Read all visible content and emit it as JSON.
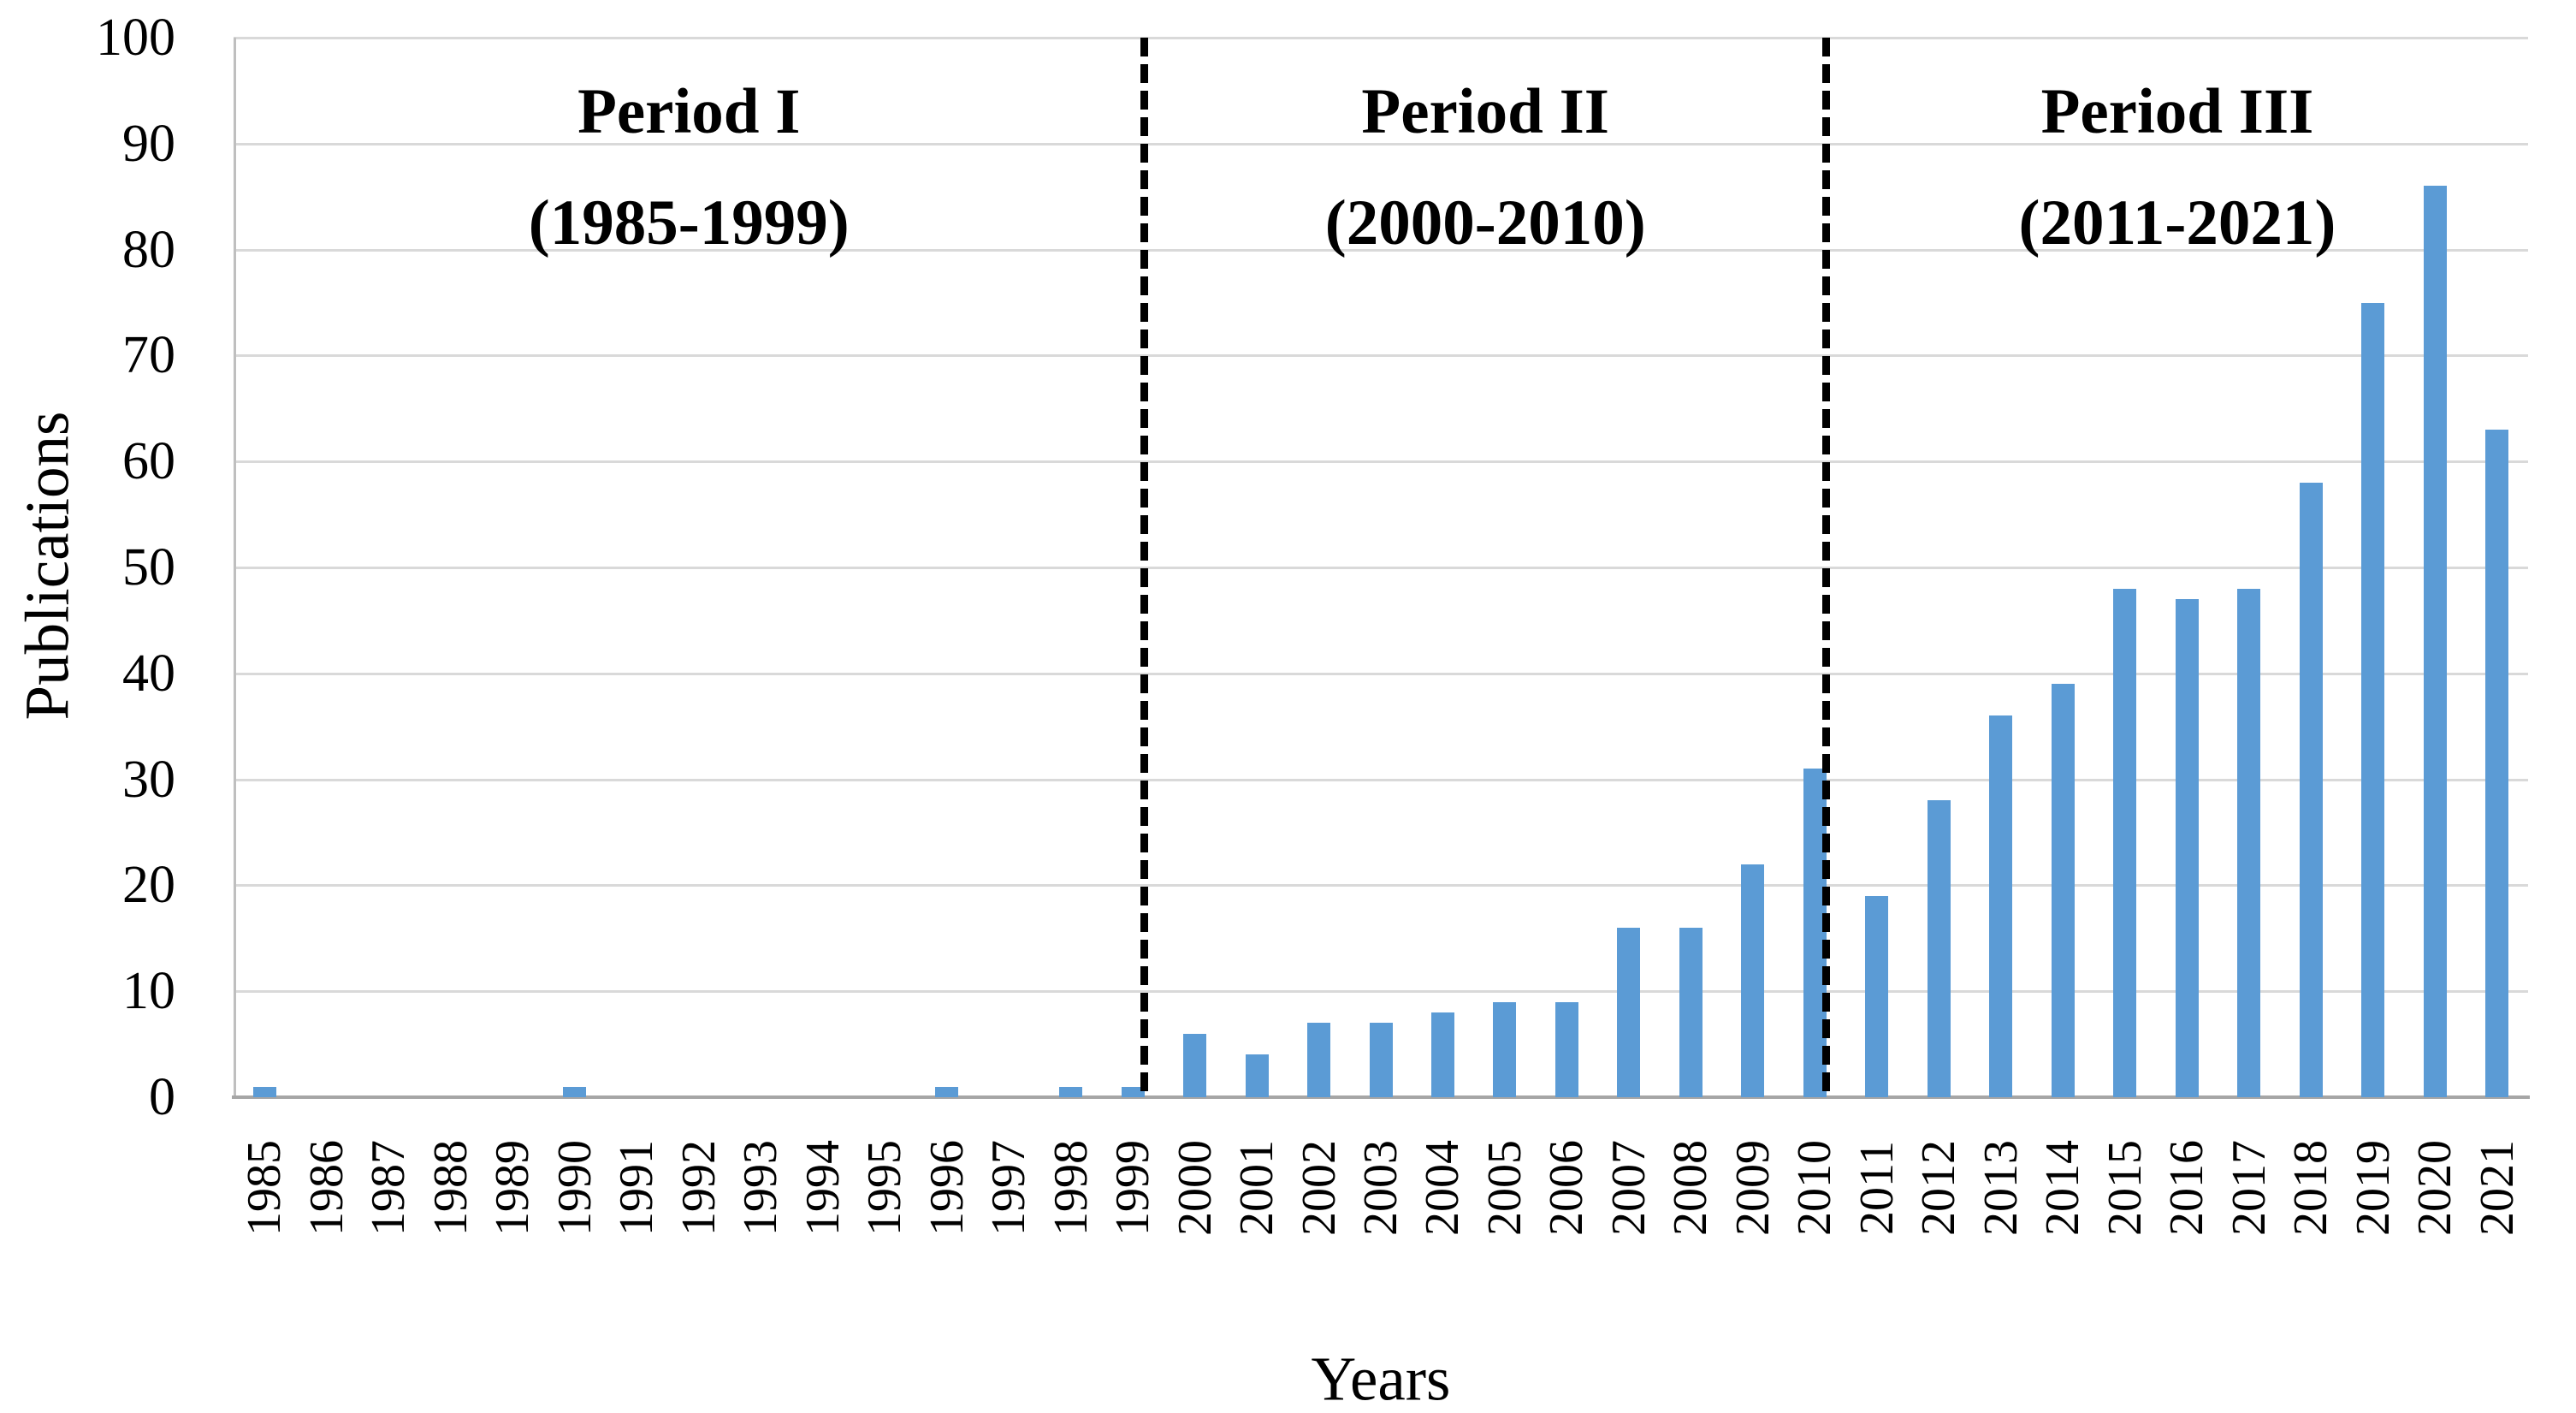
{
  "figure": {
    "background": "#ffffff",
    "colors": {
      "bar": "#5B9BD5",
      "gridline": "#D9D9D9",
      "y_axis_line": "#BFBFBF",
      "x_axis_line": "#A6A6A6",
      "divider": "#000000",
      "text": "#000000"
    },
    "periods": [
      {
        "title": "Period I",
        "subtitle": "(1985-1999)"
      },
      {
        "title": "Period II",
        "subtitle": "(2000-2010)"
      },
      {
        "title": "Period III",
        "subtitle": "(2011-2021)"
      }
    ],
    "dividers_after_years": [
      "1999",
      "2010"
    ]
  },
  "chart_data": {
    "type": "bar",
    "title": "",
    "xlabel": "Years",
    "ylabel": "Publications",
    "ylim": [
      0,
      100
    ],
    "grid": true,
    "legend": false,
    "yticks": [
      0,
      10,
      20,
      30,
      40,
      50,
      60,
      70,
      80,
      90,
      100
    ],
    "categories": [
      "1985",
      "1986",
      "1987",
      "1988",
      "1989",
      "1990",
      "1991",
      "1992",
      "1993",
      "1994",
      "1995",
      "1996",
      "1997",
      "1998",
      "1999",
      "2000",
      "2001",
      "2002",
      "2003",
      "2004",
      "2005",
      "2006",
      "2007",
      "2008",
      "2009",
      "2010",
      "2011",
      "2012",
      "2013",
      "2014",
      "2015",
      "2016",
      "2017",
      "2018",
      "2019",
      "2020",
      "2021"
    ],
    "values": [
      1,
      0,
      0,
      0,
      0,
      1,
      0,
      0,
      0,
      0,
      0,
      1,
      0,
      1,
      1,
      6,
      4,
      7,
      7,
      8,
      9,
      9,
      16,
      16,
      22,
      31,
      19,
      28,
      36,
      39,
      48,
      47,
      48,
      58,
      75,
      86,
      63
    ]
  }
}
